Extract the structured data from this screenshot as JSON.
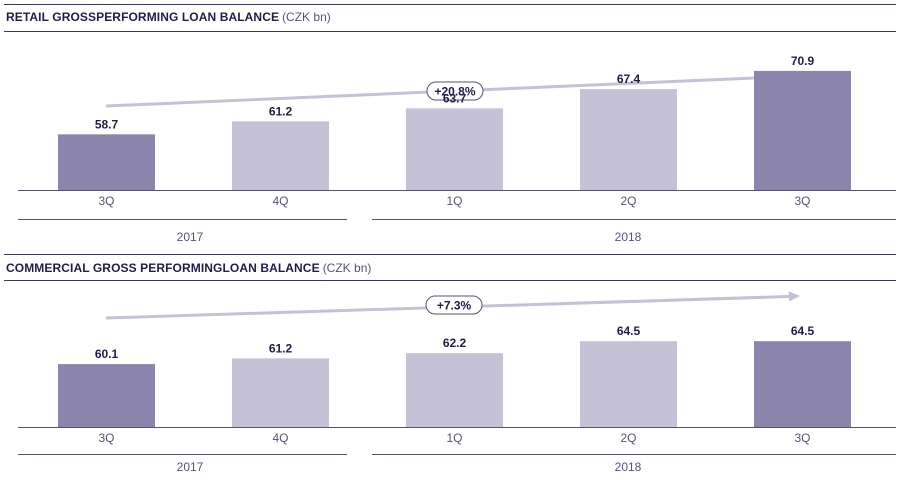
{
  "colors": {
    "highlight": "#8b84ad",
    "regular": "#c5c1d6",
    "arrow": "#c5c1d6",
    "text": "#1f1d4a",
    "axis": "#55527a"
  },
  "chart_data": [
    {
      "type": "bar",
      "title": "RETAIL GROSSPERFORMING LOAN BALANCE",
      "unit": "(CZK bn)",
      "categories": [
        "3Q",
        "4Q",
        "1Q",
        "2Q",
        "3Q"
      ],
      "values": [
        58.7,
        61.2,
        63.7,
        67.4,
        70.9
      ],
      "value_labels": [
        "58.7",
        "61.2",
        "63.7",
        "67.4",
        "70.9"
      ],
      "highlighted": [
        true,
        false,
        false,
        false,
        true
      ],
      "year_groups": [
        {
          "label": "2017",
          "categories": [
            "3Q",
            "4Q"
          ]
        },
        {
          "label": "2018",
          "categories": [
            "1Q",
            "2Q",
            "3Q"
          ]
        }
      ],
      "growth_label": "+20.8%",
      "ylim": [
        48,
        72
      ]
    },
    {
      "type": "bar",
      "title": "COMMERCIAL GROSS PERFORMINGLOAN BALANCE",
      "unit": "(CZK bn)",
      "categories": [
        "3Q",
        "4Q",
        "1Q",
        "2Q",
        "3Q"
      ],
      "values": [
        60.1,
        61.2,
        62.2,
        64.5,
        64.5
      ],
      "value_labels": [
        "60.1",
        "61.2",
        "62.2",
        "64.5",
        "64.5"
      ],
      "highlighted": [
        true,
        false,
        false,
        false,
        true
      ],
      "year_groups": [
        {
          "label": "2017",
          "categories": [
            "3Q",
            "4Q"
          ]
        },
        {
          "label": "2018",
          "categories": [
            "1Q",
            "2Q",
            "3Q"
          ]
        }
      ],
      "growth_label": "+7.3%",
      "ylim": [
        48,
        72
      ]
    }
  ]
}
